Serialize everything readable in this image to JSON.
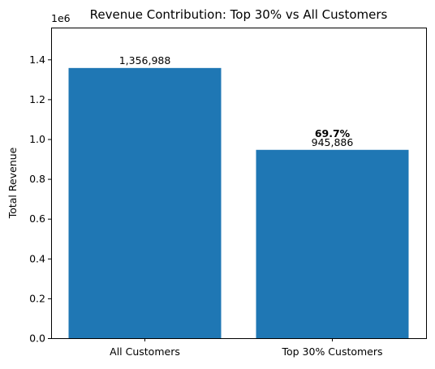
{
  "chart_data": {
    "type": "bar",
    "title": "Revenue Contribution: Top 30% vs All Customers",
    "xlabel": "",
    "ylabel": "Total Revenue",
    "y_offset_text": "1e6",
    "ylim": [
      0,
      1.56
    ],
    "yticks": [
      "0.0",
      "0.2",
      "0.4",
      "0.6",
      "0.8",
      "1.0",
      "1.2",
      "1.4"
    ],
    "ytick_values": [
      0,
      0.2,
      0.4,
      0.6,
      0.8,
      1.0,
      1.2,
      1.4
    ],
    "categories": [
      "All Customers",
      "Top 30% Customers"
    ],
    "values": [
      1356988,
      945886
    ],
    "value_labels": [
      "1,356,988",
      "945,886"
    ],
    "percent_label": "69.7%",
    "bar_color": "#1f77b4",
    "grid": false,
    "legend": "none"
  }
}
